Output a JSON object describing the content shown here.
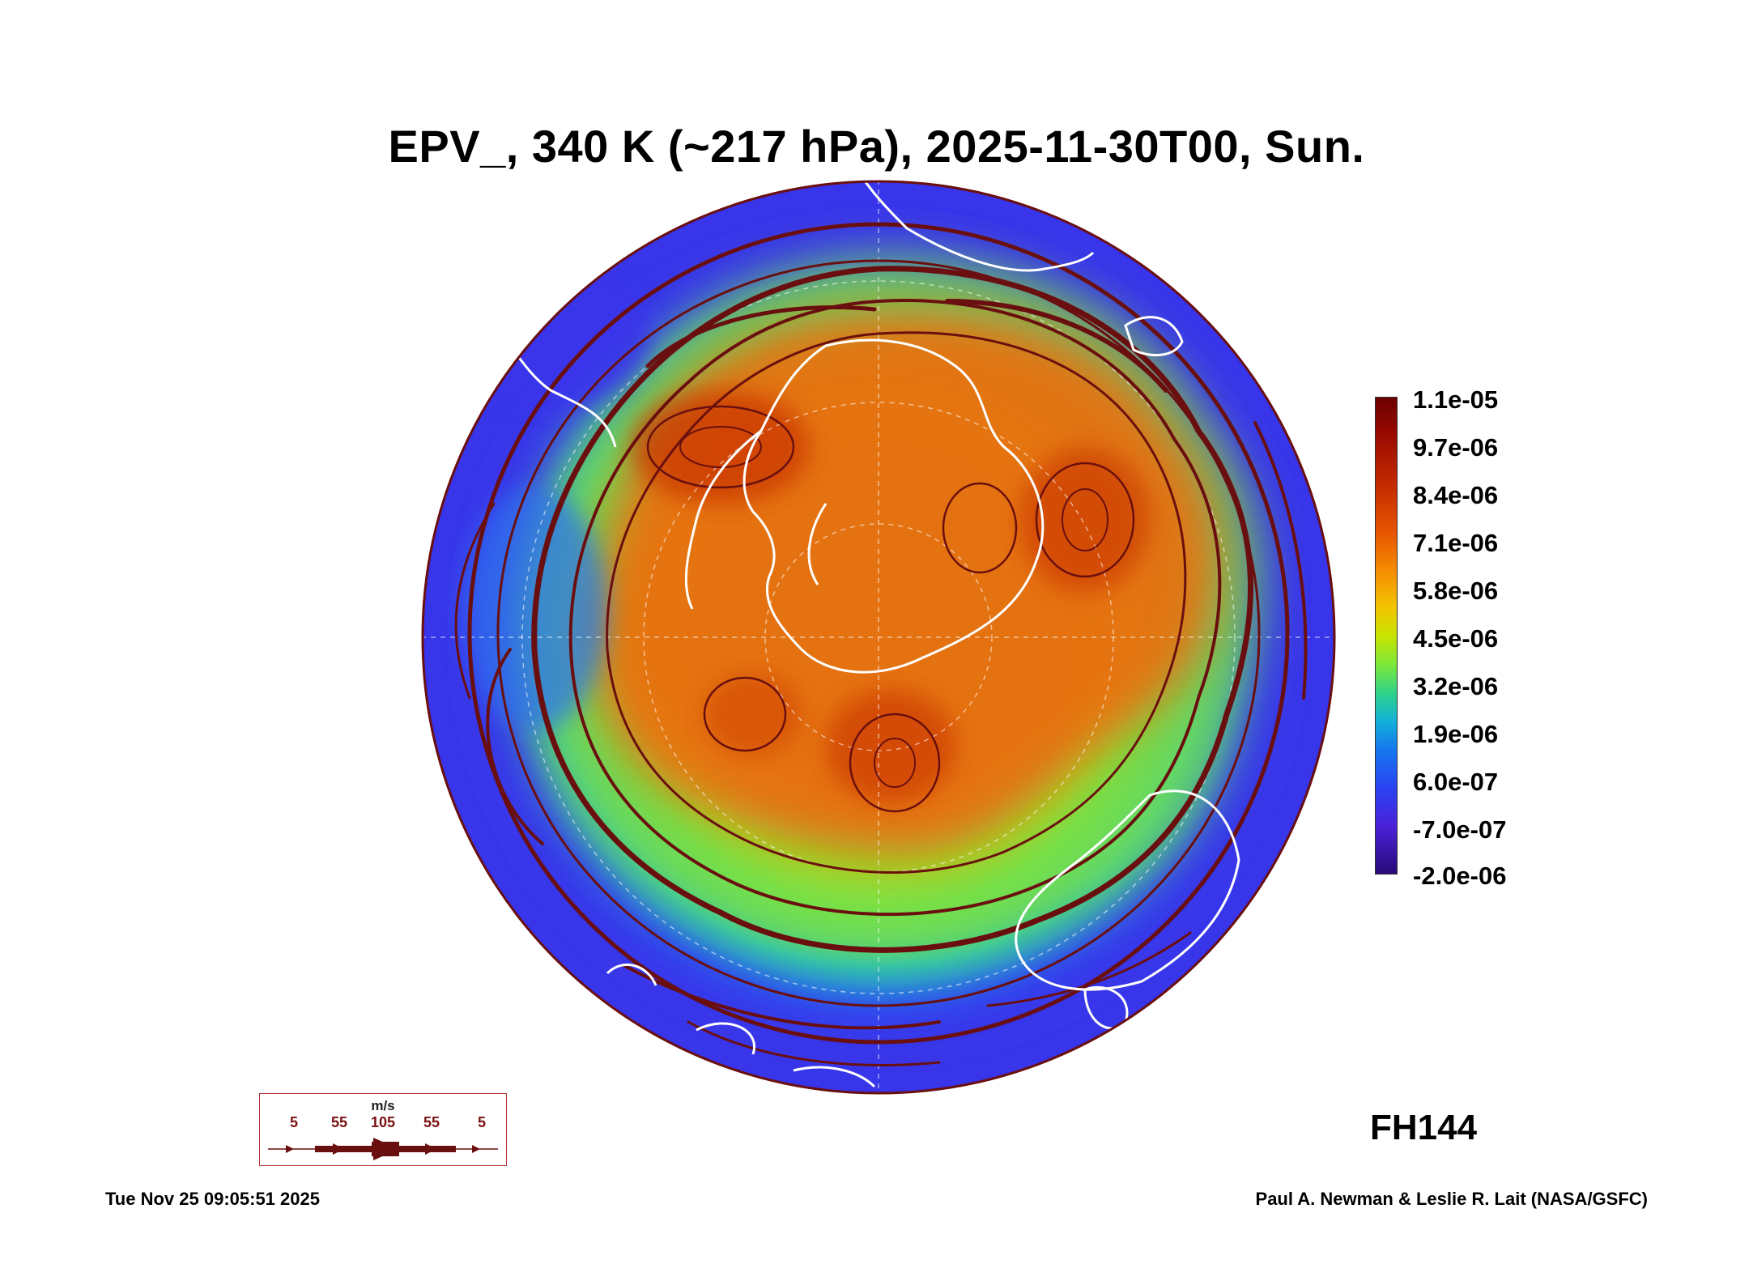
{
  "title": "EPV_, 340 K (~217 hPa), 2025-11-30T00, Sun.",
  "colorbar": {
    "labels": [
      "1.1e-05",
      "9.7e-06",
      "8.4e-06",
      "7.1e-06",
      "5.8e-06",
      "4.5e-06",
      "3.2e-06",
      "1.9e-06",
      "6.0e-07",
      "-7.0e-07",
      "-2.0e-06"
    ]
  },
  "forecast_hour": "FH144",
  "wind_legend": {
    "units": "m/s",
    "values": [
      "5",
      "55",
      "105",
      "55",
      "5"
    ]
  },
  "footer": {
    "timestamp": "Tue Nov 25 09:05:51 2025",
    "credit": "Paul A. Newman & Leslie R. Lait (NASA/GSFC)"
  },
  "colors": {
    "high_pv": "#c83200",
    "mid_pv": "#f2d400",
    "low_pv": "#3c3cf0",
    "streamline": "#6a0f0f",
    "coastline": "#ffffff"
  }
}
